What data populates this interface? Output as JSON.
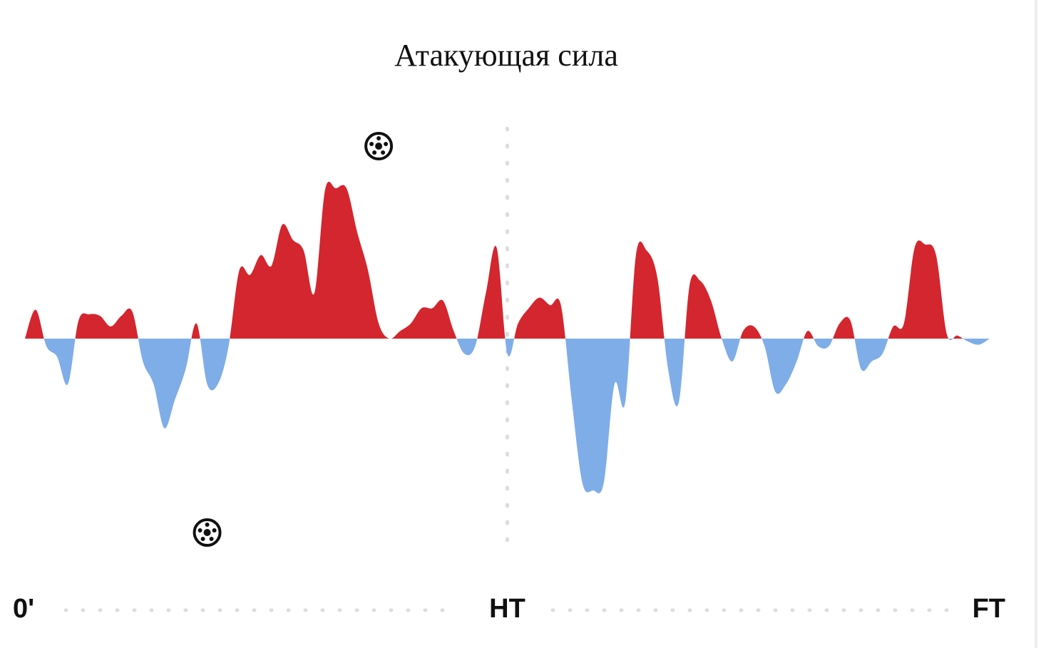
{
  "chart_data": {
    "type": "momentum",
    "title": "Атакующая сила",
    "xlim": [
      0,
      90
    ],
    "xticks": [
      {
        "value": 0,
        "label": "0'"
      },
      {
        "value": 45,
        "label": "HT"
      },
      {
        "value": 90,
        "label": "FT"
      }
    ],
    "ylim": [
      -100,
      100
    ],
    "x": [
      0,
      1,
      2,
      3,
      4,
      5,
      6,
      7,
      8,
      9,
      10,
      11,
      12,
      13,
      14,
      15,
      16,
      17,
      18,
      19,
      20,
      21,
      22,
      23,
      24,
      25,
      26,
      27,
      28,
      29,
      30,
      31,
      32,
      33,
      34,
      35,
      36,
      37,
      38,
      39,
      40,
      41,
      42,
      43,
      44,
      45,
      46,
      47,
      48,
      49,
      50,
      51,
      52,
      53,
      54,
      55,
      56,
      57,
      58,
      59,
      60,
      61,
      62,
      63,
      64,
      65,
      66,
      67,
      68,
      69,
      70,
      71,
      72,
      73,
      74,
      75,
      76,
      77,
      78,
      79,
      80,
      81,
      82,
      83,
      84,
      85,
      86,
      87,
      88,
      89,
      90
    ],
    "values": [
      0,
      19,
      -5,
      -12,
      -30,
      12,
      16,
      15,
      8,
      15,
      18,
      -15,
      -30,
      -59,
      -40,
      -20,
      10,
      -30,
      -30,
      -5,
      45,
      42,
      55,
      48,
      75,
      65,
      58,
      30,
      98,
      99,
      99,
      70,
      45,
      10,
      0,
      5,
      10,
      20,
      20,
      25,
      5,
      -10,
      -5,
      30,
      60,
      -10,
      10,
      20,
      27,
      22,
      22,
      -40,
      -95,
      -100,
      -95,
      -30,
      -42,
      55,
      58,
      40,
      -20,
      -42,
      35,
      38,
      25,
      0,
      -15,
      5,
      8,
      -5,
      -35,
      -30,
      -15,
      5,
      -5,
      -5,
      10,
      12,
      -20,
      -15,
      -10,
      8,
      10,
      60,
      62,
      55,
      3,
      2,
      -2,
      -4,
      0
    ],
    "color_positive": "#d3262e",
    "color_negative": "#7fade8",
    "home_goals": [
      33
    ],
    "away_goals": [
      17
    ]
  }
}
